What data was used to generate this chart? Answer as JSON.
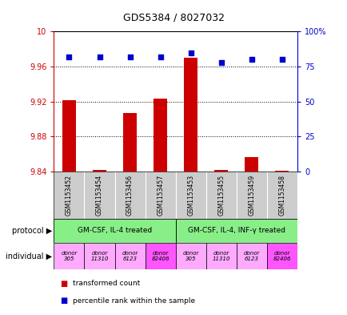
{
  "title": "GDS5384 / 8027032",
  "samples": [
    "GSM1153452",
    "GSM1153454",
    "GSM1153456",
    "GSM1153457",
    "GSM1153453",
    "GSM1153455",
    "GSM1153459",
    "GSM1153458"
  ],
  "bar_values": [
    9.922,
    9.842,
    9.907,
    9.923,
    9.97,
    9.842,
    9.857,
    9.841
  ],
  "scatter_values": [
    82,
    82,
    82,
    82,
    85,
    78,
    80,
    80
  ],
  "ylim_left": [
    9.84,
    10.0
  ],
  "ylim_right": [
    0,
    100
  ],
  "yticks_left": [
    9.84,
    9.88,
    9.92,
    9.96,
    10.0
  ],
  "yticks_right": [
    0,
    25,
    50,
    75,
    100
  ],
  "bar_color": "#cc0000",
  "scatter_color": "#0000cc",
  "bar_baseline": 9.84,
  "protocol_labels": [
    "GM-CSF, IL-4 treated",
    "GM-CSF, IL-4, INF-γ treated"
  ],
  "protocol_groups": [
    4,
    4
  ],
  "protocol_color": "#88ee88",
  "individual_colors": [
    "#ffaaff",
    "#ffaaff",
    "#ffaaff",
    "#ff55ff",
    "#ffaaff",
    "#ffaaff",
    "#ffaaff",
    "#ff55ff"
  ],
  "ind_labels": [
    "donor\n305",
    "donor\n11310",
    "donor\n6123",
    "donor\n82406",
    "donor\n305",
    "donor\n11310",
    "donor\n6123",
    "donor\n82406"
  ],
  "sample_bg_color": "#cccccc",
  "left_label_color": "#cc0000",
  "right_label_color": "#0000cc",
  "title_fontsize": 9,
  "left_yticklabels": [
    "9.84",
    "9.88",
    "9.92",
    "9.96",
    "10"
  ],
  "right_yticklabels": [
    "0",
    "25",
    "50",
    "75",
    "100%"
  ]
}
